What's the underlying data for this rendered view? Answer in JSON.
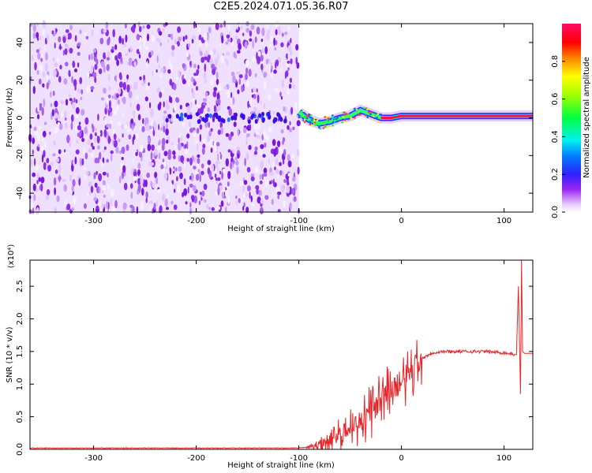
{
  "title": "C2E5.2024.071.05.36.R07",
  "colors": {
    "snr_line": "#e8262a",
    "background_noise": "#8a1fe6",
    "axis": "#000000"
  },
  "chart_data": [
    {
      "type": "heatmap",
      "xlabel": "Height of straight line (km)",
      "ylabel": "Frequency (Hz)",
      "xlim": [
        -362,
        128
      ],
      "ylim": [
        -50,
        50
      ],
      "xticks": [
        -300,
        -200,
        -100,
        0,
        100
      ],
      "yticks": [
        -40,
        -20,
        0,
        20,
        40
      ],
      "noise_region": [
        -362,
        -100
      ],
      "signal_trace": {
        "x": [
          -100,
          -90,
          -80,
          -70,
          -60,
          -50,
          -40,
          -30,
          -20,
          -10,
          0,
          10,
          40,
          80,
          110,
          128
        ],
        "y": [
          3,
          -1,
          -3,
          -2,
          0,
          1,
          4,
          2,
          0,
          0,
          1,
          1,
          1,
          1,
          1,
          1
        ]
      },
      "colorbar": {
        "label": "Normalized spectral amplitude",
        "ticks": [
          0.0,
          0.2,
          0.4,
          0.6,
          0.8
        ],
        "range": [
          0,
          1
        ]
      }
    },
    {
      "type": "line",
      "xlabel": "Height of straight line (km)",
      "ylabel": "SNR (10 * v/v)",
      "multiplier": "(x10⁴)",
      "xlim": [
        -362,
        128
      ],
      "ylim": [
        0,
        2.9
      ],
      "xticks": [
        -300,
        -200,
        -100,
        0,
        100
      ],
      "yticks": [
        0.0,
        0.5,
        1.0,
        1.5,
        2.0,
        2.5
      ],
      "series": [
        {
          "x": [
            -362,
            -300,
            -200,
            -100,
            -85,
            -70,
            -55,
            -40,
            -30,
            -20,
            -10,
            0,
            10,
            20,
            30,
            40,
            60,
            80,
            100,
            112,
            114,
            116,
            117,
            118,
            120,
            128
          ],
          "y": [
            0.02,
            0.02,
            0.02,
            0.02,
            0.05,
            0.15,
            0.3,
            0.45,
            0.6,
            0.75,
            0.95,
            1.05,
            1.25,
            1.4,
            1.48,
            1.5,
            1.5,
            1.5,
            1.48,
            1.45,
            2.5,
            0.85,
            2.9,
            1.5,
            1.47,
            1.47
          ]
        }
      ]
    }
  ]
}
